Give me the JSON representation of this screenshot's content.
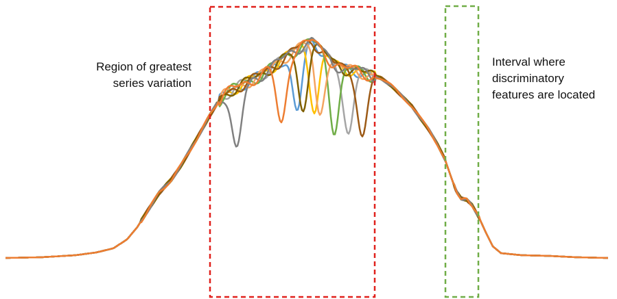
{
  "annotations": {
    "left": [
      "Region of greatest",
      "series variation"
    ],
    "right": [
      "Interval where",
      "discriminatory",
      "features are located"
    ]
  },
  "highlight_boxes": [
    {
      "name": "series-variation-region-box",
      "color": "#e0201b",
      "style": "dashed"
    },
    {
      "name": "discriminatory-interval-box",
      "color": "#70ad47",
      "style": "dashed"
    }
  ],
  "series": [
    {
      "name": "",
      "color": "#5b9bd5",
      "dip_x": 433
    },
    {
      "name": "",
      "color": "#ffc000",
      "dip_x": 458
    },
    {
      "name": "",
      "color": "#a5a5a5",
      "dip_x": 508
    },
    {
      "name": "",
      "color": "#70ad47",
      "dip_x": 487
    },
    {
      "name": "",
      "color": "#f4a460",
      "dip_x": 465
    },
    {
      "name": "",
      "color": "#9c5a16",
      "dip_x": 528
    },
    {
      "name": "",
      "color": "#7f6000",
      "dip_x": 441
    },
    {
      "name": "",
      "color": "#808080",
      "dip_x": 345
    },
    {
      "name": "",
      "color": "#ed7d31",
      "dip_x": 410
    }
  ]
}
